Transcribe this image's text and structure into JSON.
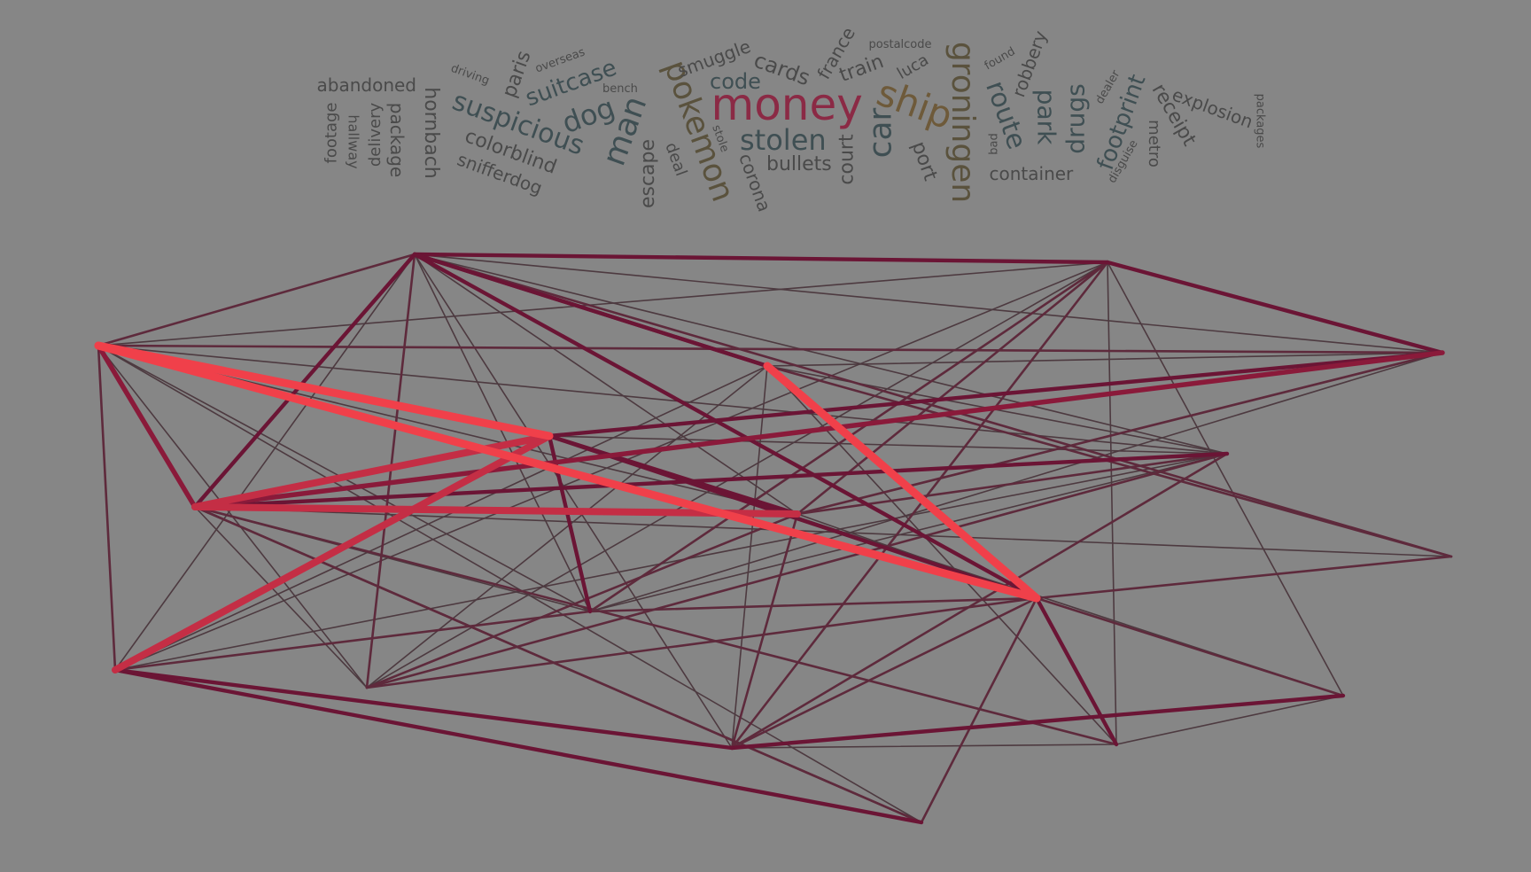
{
  "colors": {
    "background": "#868686",
    "word_dark": "#3f4f53",
    "word_gray": "#4a4a4a",
    "word_olive": "#5a523d",
    "word_brown": "#6e5a3a",
    "word_red": "#8b2a45",
    "edge_thin": "#4d3a40",
    "edge_mid": "#5e2a3c",
    "edge_dark": "#6b1535",
    "edge_med": "#8a1a3a",
    "edge_rose": "#c42e45",
    "edge_bright": "#f0404a"
  },
  "word_cloud": [
    {
      "text": "money",
      "size": 50,
      "color": "#8b2a45",
      "angle": 0
    },
    {
      "text": "groningen",
      "size": 36,
      "color": "#5a523d",
      "angle": 90
    },
    {
      "text": "pokemon",
      "size": 36,
      "color": "#5a523d",
      "angle": 70
    },
    {
      "text": "ship",
      "size": 42,
      "color": "#6e5a3a",
      "angle": 20
    },
    {
      "text": "car",
      "size": 36,
      "color": "#3f4f53",
      "angle": -90
    },
    {
      "text": "stolen",
      "size": 32,
      "color": "#3f4f53",
      "angle": 0
    },
    {
      "text": "man",
      "size": 36,
      "color": "#3f4f53",
      "angle": -70
    },
    {
      "text": "suspicious",
      "size": 30,
      "color": "#3f4f53",
      "angle": 20
    },
    {
      "text": "dog",
      "size": 32,
      "color": "#3f4f53",
      "angle": -20
    },
    {
      "text": "route",
      "size": 30,
      "color": "#3f4f53",
      "angle": 70
    },
    {
      "text": "park",
      "size": 28,
      "color": "#3f4f53",
      "angle": 90
    },
    {
      "text": "drugs",
      "size": 28,
      "color": "#3f4f53",
      "angle": -90
    },
    {
      "text": "footprint",
      "size": 26,
      "color": "#3f4f53",
      "angle": -70
    },
    {
      "text": "suitcase",
      "size": 26,
      "color": "#3f4f53",
      "angle": -20
    },
    {
      "text": "code",
      "size": 24,
      "color": "#3f4f53",
      "angle": 0
    },
    {
      "text": "cards",
      "size": 24,
      "color": "#4a4a4a",
      "angle": 20
    },
    {
      "text": "train",
      "size": 22,
      "color": "#4a4a4a",
      "angle": -20
    },
    {
      "text": "bullets",
      "size": 22,
      "color": "#4a4a4a",
      "angle": 0
    },
    {
      "text": "court",
      "size": 22,
      "color": "#4a4a4a",
      "angle": -90
    },
    {
      "text": "port",
      "size": 22,
      "color": "#4a4a4a",
      "angle": 70
    },
    {
      "text": "escape",
      "size": 22,
      "color": "#4a4a4a",
      "angle": -90
    },
    {
      "text": "colorblind",
      "size": 22,
      "color": "#4a4a4a",
      "angle": 20
    },
    {
      "text": "hornbach",
      "size": 22,
      "color": "#4a4a4a",
      "angle": 90
    },
    {
      "text": "paris",
      "size": 22,
      "color": "#4a4a4a",
      "angle": -70
    },
    {
      "text": "receipt",
      "size": 22,
      "color": "#4a4a4a",
      "angle": 60
    },
    {
      "text": "explosion",
      "size": 20,
      "color": "#4a4a4a",
      "angle": 20
    },
    {
      "text": "container",
      "size": 20,
      "color": "#4a4a4a",
      "angle": 0
    },
    {
      "text": "abandoned",
      "size": 20,
      "color": "#4a4a4a",
      "angle": 0
    },
    {
      "text": "package",
      "size": 20,
      "color": "#4a4a4a",
      "angle": 90
    },
    {
      "text": "snifferdog",
      "size": 20,
      "color": "#4a4a4a",
      "angle": 20
    },
    {
      "text": "corona",
      "size": 20,
      "color": "#4a4a4a",
      "angle": 70
    },
    {
      "text": "smuggle",
      "size": 20,
      "color": "#4a4a4a",
      "angle": -20
    },
    {
      "text": "robbery",
      "size": 20,
      "color": "#4a4a4a",
      "angle": -70
    },
    {
      "text": "france",
      "size": 20,
      "color": "#4a4a4a",
      "angle": -60
    },
    {
      "text": "metro",
      "size": 18,
      "color": "#4a4a4a",
      "angle": 90
    },
    {
      "text": "deal",
      "size": 18,
      "color": "#4a4a4a",
      "angle": 70
    },
    {
      "text": "luca",
      "size": 18,
      "color": "#4a4a4a",
      "angle": -30
    },
    {
      "text": "delivery",
      "size": 18,
      "color": "#4a4a4a",
      "angle": -90
    },
    {
      "text": "footage",
      "size": 18,
      "color": "#4a4a4a",
      "angle": -90
    },
    {
      "text": "hallway",
      "size": 16,
      "color": "#4a4a4a",
      "angle": 90
    },
    {
      "text": "overseas",
      "size": 13,
      "color": "#4a4a4a",
      "angle": -20
    },
    {
      "text": "driving",
      "size": 13,
      "color": "#4a4a4a",
      "angle": 20
    },
    {
      "text": "bench",
      "size": 13,
      "color": "#4a4a4a",
      "angle": 0
    },
    {
      "text": "postalcode",
      "size": 13,
      "color": "#4a4a4a",
      "angle": 0
    },
    {
      "text": "found",
      "size": 13,
      "color": "#4a4a4a",
      "angle": -30
    },
    {
      "text": "stole",
      "size": 13,
      "color": "#4a4a4a",
      "angle": 70
    },
    {
      "text": "bad",
      "size": 13,
      "color": "#4a4a4a",
      "angle": -90
    },
    {
      "text": "dealer",
      "size": 13,
      "color": "#4a4a4a",
      "angle": -60
    },
    {
      "text": "disguise",
      "size": 13,
      "color": "#4a4a4a",
      "angle": -60
    },
    {
      "text": "packages",
      "size": 13,
      "color": "#4a4a4a",
      "angle": 90
    }
  ]
}
